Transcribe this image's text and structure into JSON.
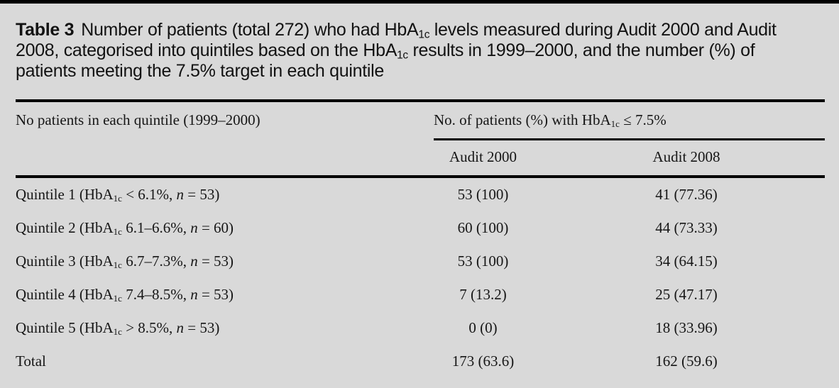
{
  "page": {
    "background_color": "#d9d9d9",
    "top_bar_color": "#000000",
    "rule_color": "#000000"
  },
  "title": {
    "label": "Table 3",
    "part1": "Number of patients (total 272) who had HbA",
    "sub1": "1c",
    "part2": " levels measured during Audit 2000 and Audit 2008, categorised into quintiles based on the HbA",
    "sub2": "1c",
    "part3": " results in 1999–2000, and the number (%) of patients meeting the 7.5% target in each quintile"
  },
  "table": {
    "col1_header": "No patients in each quintile (1999–2000)",
    "spanner": {
      "pre": "No. of patients (%) with HbA",
      "sub": "1c",
      "post": " ≤ 7.5%"
    },
    "columns": [
      "Audit 2000",
      "Audit 2008"
    ],
    "rows": [
      {
        "pre": "Quintile 1 (HbA",
        "sub": "1c",
        "mid": " < 6.1%, ",
        "n": "n",
        "post": " = 53)",
        "audit2000": "53 (100)",
        "audit2008": "41 (77.36)"
      },
      {
        "pre": "Quintile 2 (HbA",
        "sub": "1c",
        "mid": " 6.1–6.6%, ",
        "n": "n",
        "post": " = 60)",
        "audit2000": "60 (100)",
        "audit2008": "44 (73.33)"
      },
      {
        "pre": "Quintile 3 (HbA",
        "sub": "1c",
        "mid": " 6.7–7.3%, ",
        "n": "n",
        "post": " = 53)",
        "audit2000": "53 (100)",
        "audit2008": "34 (64.15)"
      },
      {
        "pre": "Quintile 4 (HbA",
        "sub": "1c",
        "mid": " 7.4–8.5%, ",
        "n": "n",
        "post": " = 53)",
        "audit2000": "7 (13.2)",
        "audit2008": "25 (47.17)"
      },
      {
        "pre": "Quintile 5 (HbA",
        "sub": "1c",
        "mid": " > 8.5%, ",
        "n": "n",
        "post": " = 53)",
        "audit2000": "0 (0)",
        "audit2008": "18 (33.96)"
      },
      {
        "pre": "Total",
        "sub": "",
        "mid": "",
        "n": "",
        "post": "",
        "audit2000": "173 (63.6)",
        "audit2008": "162 (59.6)"
      }
    ]
  }
}
